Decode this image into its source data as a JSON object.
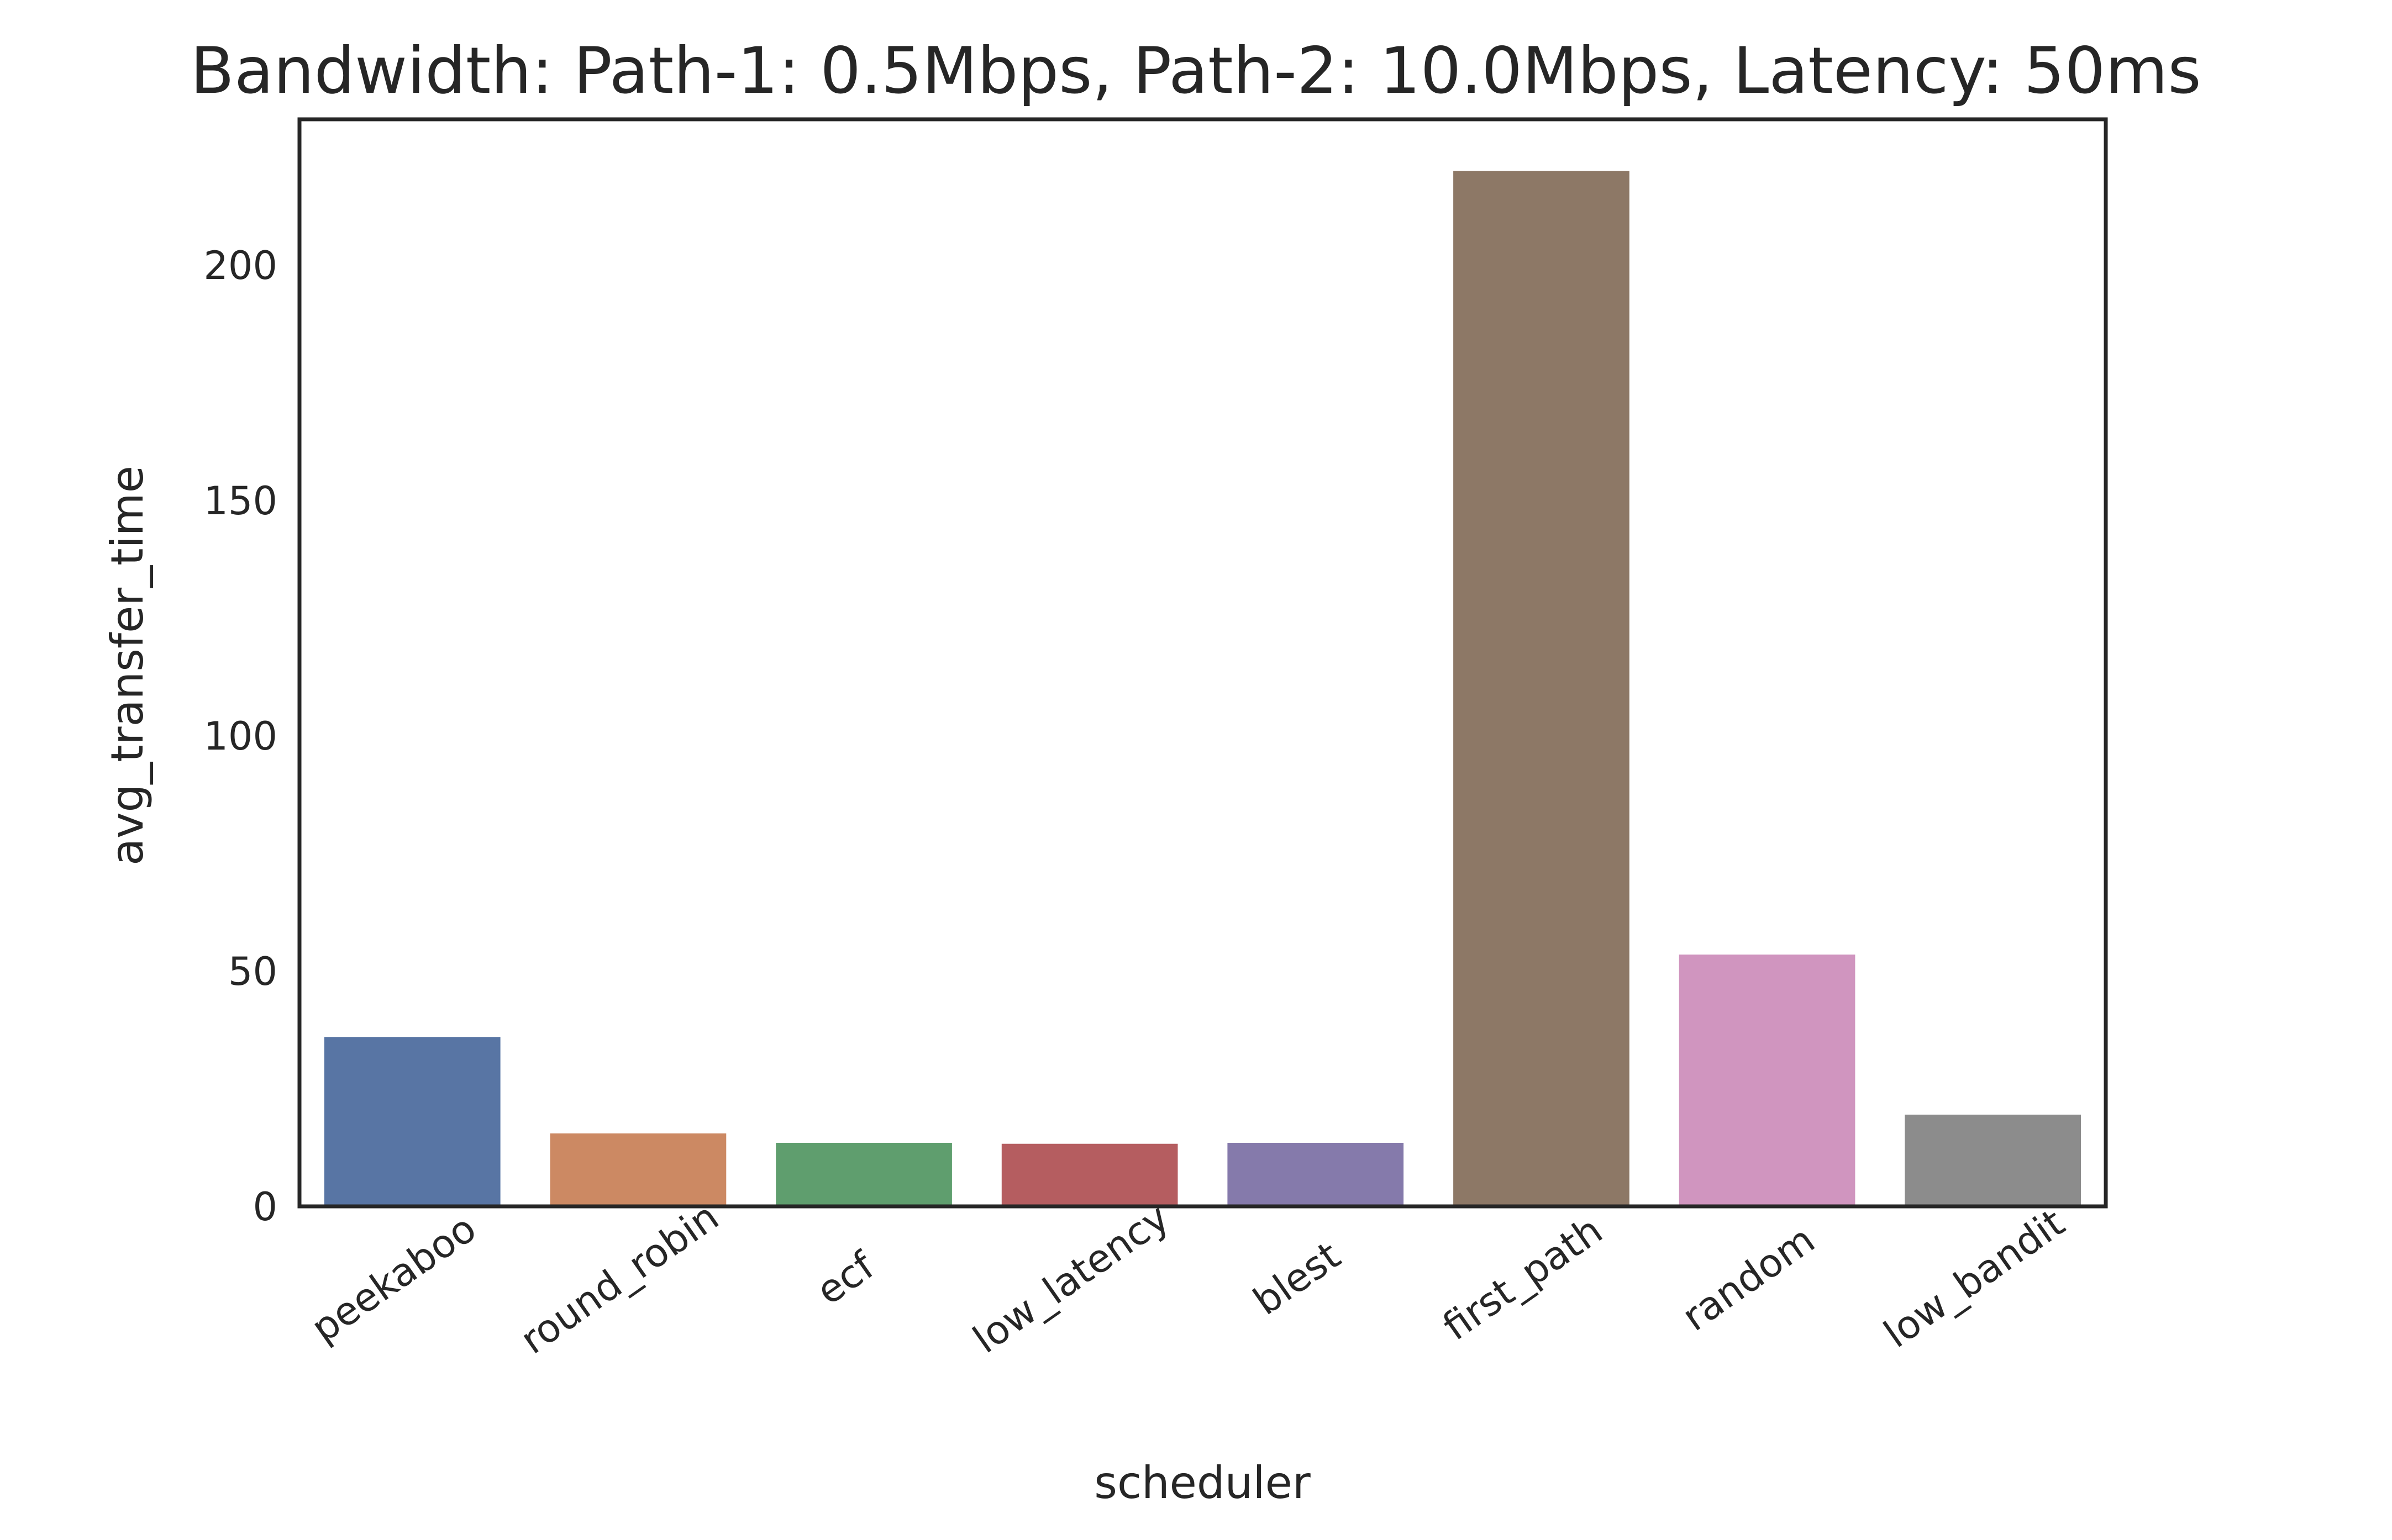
{
  "chart_data": {
    "type": "bar",
    "title": "Bandwidth: Path-1: 0.5Mbps, Path-2: 10.0Mbps, Latency: 50ms",
    "xlabel": "scheduler",
    "ylabel": "avg_transfer_time",
    "categories": [
      "peekaboo",
      "round_robin",
      "ecf",
      "low_latency",
      "blest",
      "first_path",
      "random",
      "low_bandit"
    ],
    "values": [
      36,
      15.5,
      13.5,
      13.3,
      13.5,
      220,
      53.5,
      19.5
    ],
    "colors": [
      "#5875a4",
      "#cc8963",
      "#5f9e6e",
      "#b55d60",
      "#857aab",
      "#8d7866",
      "#d095bf",
      "#8c8c8c"
    ],
    "yticks": [
      0,
      50,
      100,
      150,
      200
    ],
    "ylim": [
      0,
      231
    ],
    "grid": false,
    "legend": "none"
  }
}
